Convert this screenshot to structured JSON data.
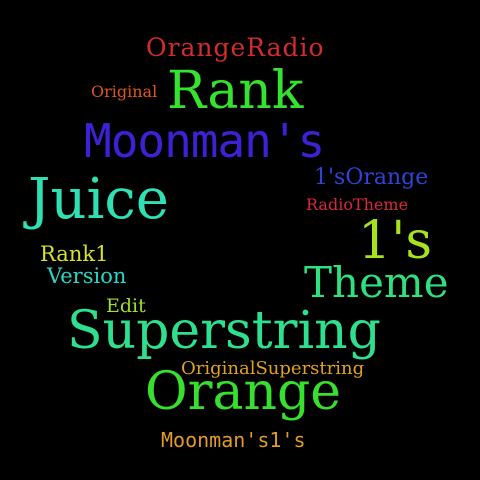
{
  "background": "#000000",
  "words": [
    {
      "id": "orangeradio",
      "text": "OrangeRadio",
      "color": "#d22c2c"
    },
    {
      "id": "original",
      "text": "Original",
      "color": "#e0561e"
    },
    {
      "id": "rank",
      "text": "Rank",
      "color": "#35e22e"
    },
    {
      "id": "moonmans",
      "text": "Moonman's",
      "color": "#3c22d6"
    },
    {
      "id": "1sorange",
      "text": "1'sOrange",
      "color": "#2c45d8"
    },
    {
      "id": "juice",
      "text": "Juice",
      "color": "#2ee0b2"
    },
    {
      "id": "radiotheme",
      "text": "RadioTheme",
      "color": "#d8283e"
    },
    {
      "id": "1s",
      "text": "1's",
      "color": "#a6e21e"
    },
    {
      "id": "rank1",
      "text": "Rank1",
      "color": "#d6e22c"
    },
    {
      "id": "version",
      "text": "Version",
      "color": "#2ad6c6"
    },
    {
      "id": "theme",
      "text": "Theme",
      "color": "#2ee07e"
    },
    {
      "id": "edit",
      "text": "Edit",
      "color": "#9ee02a"
    },
    {
      "id": "superstring",
      "text": "Superstring",
      "color": "#2ee08e"
    },
    {
      "id": "originalsuper",
      "text": "OriginalSuperstring",
      "color": "#e0a21e"
    },
    {
      "id": "orange",
      "text": "Orange",
      "color": "#38e02e"
    },
    {
      "id": "moonmans1s",
      "text": "Moonman's1's",
      "color": "#e09a2a"
    }
  ]
}
